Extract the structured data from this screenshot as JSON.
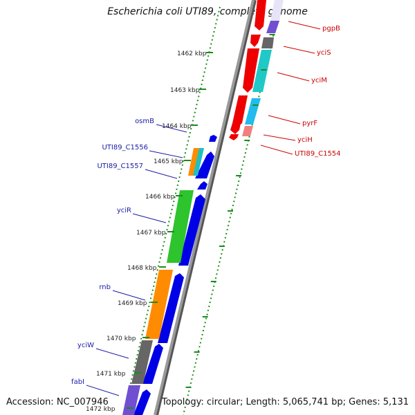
{
  "title": "Escherichia coli UTI89, complete genome",
  "accession": "Accession: NC_007946",
  "summary": "Topology: circular; Length: 5,065,741 bp; Genes: 5,131",
  "colors": {
    "forward_cds": "#0000e6",
    "reverse_cds": "#ee0000",
    "forward_label": "#1a1aa6",
    "reverse_label": "#cc0000",
    "backbone": "#888888",
    "tick": "#1a8c1a",
    "axis_text": "#222222"
  },
  "kbp_labels": [
    "1462 kbp",
    "1463 kbp",
    "1464 kbp",
    "1465 kbp",
    "1466 kbp",
    "1467 kbp",
    "1468 kbp",
    "1469 kbp",
    "1470 kbp",
    "1471 kbp",
    "1472 kbp"
  ],
  "genes_forward": [
    {
      "label": "osmB",
      "color": "#0000e6"
    },
    {
      "label": "UTI89_C1556",
      "color": "#0000e6"
    },
    {
      "label": "UTI89_C1557",
      "color": "#0000e6"
    },
    {
      "label": "yciR",
      "color": "#0000e6"
    },
    {
      "label": "rnb",
      "color": "#0000e6"
    },
    {
      "label": "yciW",
      "color": "#0000e6"
    },
    {
      "label": "fabI",
      "color": "#0000e6"
    }
  ],
  "genes_reverse": [
    {
      "label": "pgpB",
      "color": "#ee0000"
    },
    {
      "label": "yciS",
      "color": "#ee0000"
    },
    {
      "label": "yciM",
      "color": "#ee0000"
    },
    {
      "label": "pyrF",
      "color": "#ee0000"
    },
    {
      "label": "yciH",
      "color": "#ee0000"
    },
    {
      "label": "UTI89_C1554",
      "color": "#ee0000"
    }
  ]
}
